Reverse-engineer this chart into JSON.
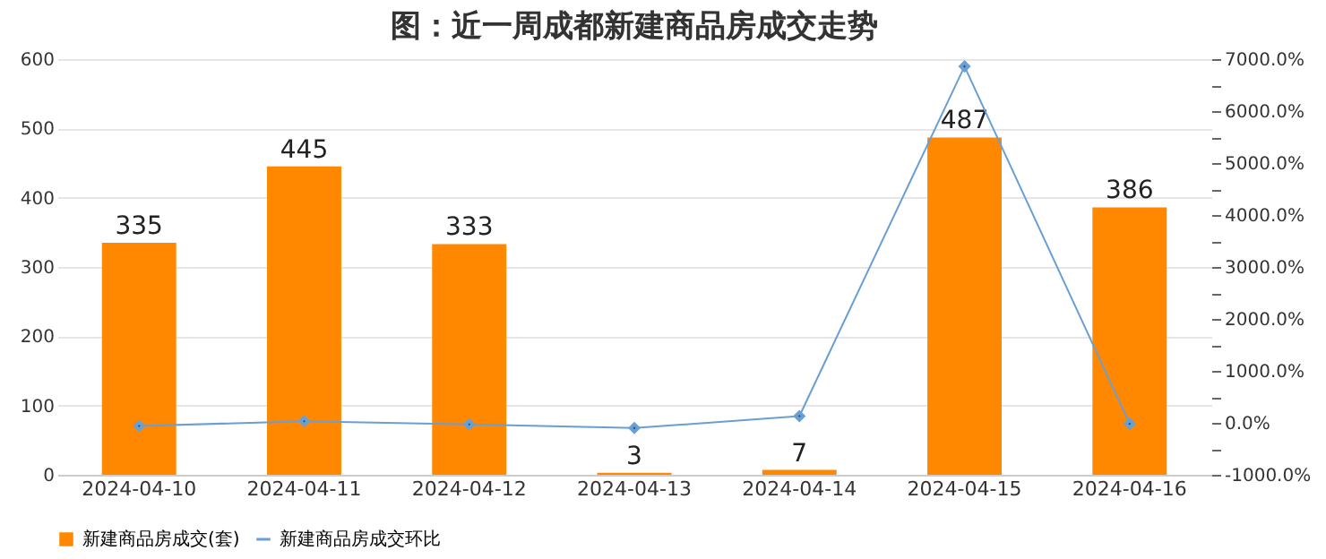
{
  "chart_data": {
    "type": "bar",
    "title": "图：近一周成都新建商品房成交走势",
    "categories": [
      "2024-04-10",
      "2024-04-11",
      "2024-04-12",
      "2024-04-13",
      "2024-04-14",
      "2024-04-15",
      "2024-04-16"
    ],
    "series": [
      {
        "name": "新建商品房成交(套)",
        "color": "#ff8800",
        "values": [
          335,
          445,
          333,
          3,
          7,
          487,
          386
        ],
        "value_labels": [
          "335",
          "445",
          "333",
          "3",
          "7",
          "487",
          "386"
        ]
      },
      {
        "name": "新建商品房成交环比",
        "type": "line",
        "axis": "y2",
        "color": "#6a9fd4",
        "marker": "diamond",
        "line_style": "solid",
        "values": [
          -60,
          30,
          -30,
          -100,
          130,
          6860,
          -20
        ]
      }
    ],
    "ylim": [
      0,
      600
    ],
    "yticks": [
      0,
      100,
      200,
      300,
      400,
      500,
      600
    ],
    "y2lim": [
      -1000,
      7000
    ],
    "y2ticks": [
      {
        "value": -1000,
        "label": "-1000.0%"
      },
      {
        "value": -500,
        "label": null
      },
      {
        "value": 0,
        "label": "0.0%"
      },
      {
        "value": 500,
        "label": null
      },
      {
        "value": 1000,
        "label": "1000.0%"
      },
      {
        "value": 1500,
        "label": null
      },
      {
        "value": 2000,
        "label": "2000.0%"
      },
      {
        "value": 2500,
        "label": null
      },
      {
        "value": 3000,
        "label": "3000.0%"
      },
      {
        "value": 3500,
        "label": null
      },
      {
        "value": 4000,
        "label": "4000.0%"
      },
      {
        "value": 4500,
        "label": null
      },
      {
        "value": 5000,
        "label": "5000.0%"
      },
      {
        "value": 5500,
        "label": null
      },
      {
        "value": 6000,
        "label": "6000.0%"
      },
      {
        "value": 6500,
        "label": null
      },
      {
        "value": 7000,
        "label": "7000.0%"
      }
    ],
    "grid": "y",
    "legend": "bottom"
  }
}
